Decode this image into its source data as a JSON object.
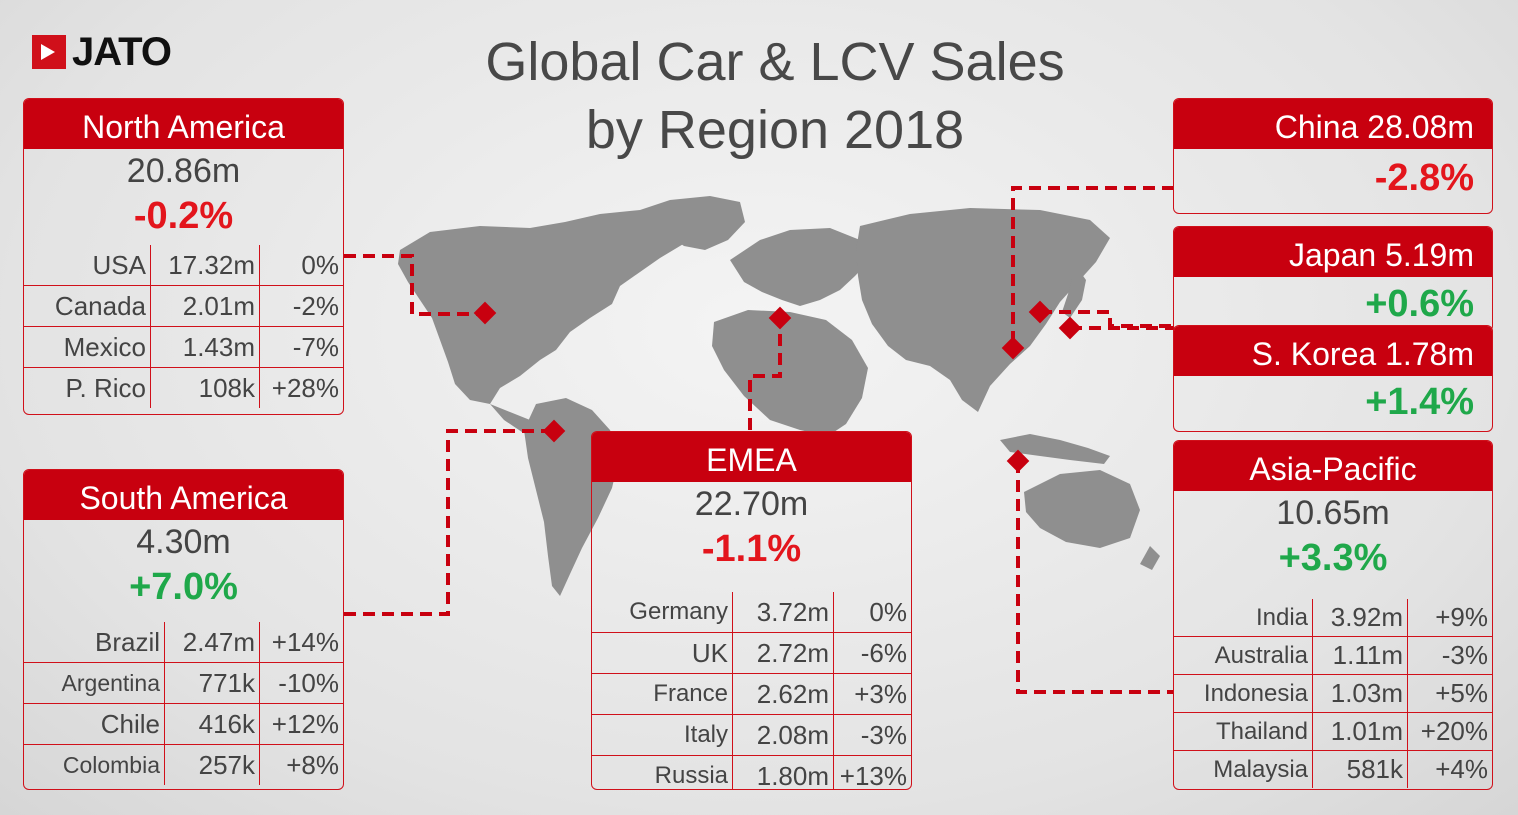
{
  "logo": {
    "text": "JATO"
  },
  "title": {
    "line1": "Global Car & LCV Sales",
    "line2": "by Region 2018"
  },
  "chart_data": {
    "type": "table",
    "title": "Global Car & LCV Sales by Region 2018",
    "regions": [
      {
        "name": "North America",
        "total": "20.86m",
        "change": "-0.2%",
        "countries": [
          {
            "country": "USA",
            "sales": "17.32m",
            "change": "0%"
          },
          {
            "country": "Canada",
            "sales": "2.01m",
            "change": "-2%"
          },
          {
            "country": "Mexico",
            "sales": "1.43m",
            "change": "-7%"
          },
          {
            "country": "P. Rico",
            "sales": "108k",
            "change": "+28%"
          }
        ]
      },
      {
        "name": "South America",
        "total": "4.30m",
        "change": "+7.0%",
        "countries": [
          {
            "country": "Brazil",
            "sales": "2.47m",
            "change": "+14%"
          },
          {
            "country": "Argentina",
            "sales": "771k",
            "change": "-10%"
          },
          {
            "country": "Chile",
            "sales": "416k",
            "change": "+12%"
          },
          {
            "country": "Colombia",
            "sales": "257k",
            "change": "+8%"
          }
        ]
      },
      {
        "name": "EMEA",
        "total": "22.70m",
        "change": "-1.1%",
        "countries": [
          {
            "country": "Germany",
            "sales": "3.72m",
            "change": "0%"
          },
          {
            "country": "UK",
            "sales": "2.72m",
            "change": "-6%"
          },
          {
            "country": "France",
            "sales": "2.62m",
            "change": "+3%"
          },
          {
            "country": "Italy",
            "sales": "2.08m",
            "change": "-3%"
          },
          {
            "country": "Russia",
            "sales": "1.80m",
            "change": "+13%"
          }
        ]
      },
      {
        "name": "Asia-Pacific",
        "total": "10.65m",
        "change": "+3.3%",
        "countries": [
          {
            "country": "India",
            "sales": "3.92m",
            "change": "+9%"
          },
          {
            "country": "Australia",
            "sales": "1.11m",
            "change": "-3%"
          },
          {
            "country": "Indonesia",
            "sales": "1.03m",
            "change": "+5%"
          },
          {
            "country": "Thailand",
            "sales": "1.01m",
            "change": "+20%"
          },
          {
            "country": "Malaysia",
            "sales": "581k",
            "change": "+4%"
          }
        ]
      },
      {
        "name": "China",
        "total": "28.08m",
        "change": "-2.8%"
      },
      {
        "name": "Japan",
        "total": "5.19m",
        "change": "+0.6%"
      },
      {
        "name": "S. Korea",
        "total": "1.78m",
        "change": "+1.4%"
      }
    ]
  },
  "colors": {
    "accent": "#c8000f",
    "negative": "#e3151c",
    "positive": "#1fa84a",
    "map": "#8c8c8c"
  }
}
